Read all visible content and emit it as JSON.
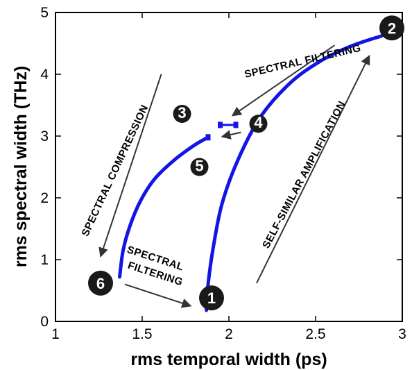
{
  "chart_data": {
    "type": "line",
    "xlabel": "rms temporal width (ps)",
    "ylabel": "rms spectral width (THz)",
    "xlim": [
      1,
      3
    ],
    "ylim": [
      0,
      5
    ],
    "xticks": [
      "1",
      "1.5",
      "2",
      "2.5",
      "3"
    ],
    "yticks": [
      "0",
      "1",
      "2",
      "3",
      "4",
      "5"
    ],
    "grid": false,
    "line_color": "#1414e6",
    "series": [
      {
        "segment": "amplification",
        "points": [
          [
            1.87,
            0.18
          ],
          [
            1.88,
            0.6
          ],
          [
            1.91,
            1.2
          ],
          [
            1.96,
            1.9
          ],
          [
            2.05,
            2.6
          ],
          [
            2.18,
            3.3
          ],
          [
            2.35,
            3.85
          ],
          [
            2.52,
            4.2
          ],
          [
            2.7,
            4.45
          ],
          [
            2.88,
            4.62
          ]
        ]
      },
      {
        "segment": "compression",
        "points": [
          [
            1.88,
            2.98
          ],
          [
            1.8,
            2.85
          ],
          [
            1.68,
            2.6
          ],
          [
            1.57,
            2.3
          ],
          [
            1.49,
            1.95
          ],
          [
            1.43,
            1.55
          ],
          [
            1.39,
            1.15
          ],
          [
            1.37,
            0.72
          ]
        ]
      }
    ],
    "markers": [
      {
        "label": "4",
        "x": 2.04,
        "y": 3.18
      },
      {
        "label": "3",
        "x": 1.95,
        "y": 3.18
      },
      {
        "label": "5",
        "x": 1.88,
        "y": 2.98
      }
    ],
    "point_labels": [
      {
        "label": "1",
        "x": 1.9,
        "y": 0.38
      },
      {
        "label": "2",
        "x": 2.94,
        "y": 4.75
      },
      {
        "label": "3",
        "x": 1.73,
        "y": 3.36
      },
      {
        "label": "4",
        "x": 2.17,
        "y": 3.2
      },
      {
        "label": "5",
        "x": 1.83,
        "y": 2.5
      },
      {
        "label": "6",
        "x": 1.26,
        "y": 0.62
      }
    ],
    "annotations": [
      {
        "text": "SELF-SIMILAR AMPLIFICATION",
        "rotation": -62,
        "x": 2.45,
        "y": 2.35
      },
      {
        "text": "SPECTRAL FILTERING",
        "rotation": -13,
        "x": 2.43,
        "y": 4.16
      },
      {
        "text": "SPECTRAL COMPRESSION",
        "rotation": -65,
        "x": 1.36,
        "y": 2.42
      },
      {
        "text": "SPECTRAL",
        "rotation": 18,
        "x": 1.57,
        "y": 0.97
      },
      {
        "text": "FILTERING",
        "rotation": 18,
        "x": 1.57,
        "y": 0.72
      }
    ],
    "arrows": [
      {
        "from": [
          2.16,
          0.62
        ],
        "to": [
          2.81,
          4.3
        ]
      },
      {
        "from": [
          2.61,
          4.47
        ],
        "to": [
          2.02,
          3.33
        ]
      },
      {
        "from": [
          1.61,
          4.0
        ],
        "to": [
          1.26,
          1.05
        ]
      },
      {
        "from": [
          2.07,
          3.06
        ],
        "to": [
          1.96,
          2.99
        ]
      },
      {
        "from": [
          1.4,
          0.6
        ],
        "to": [
          1.78,
          0.25
        ]
      }
    ]
  }
}
